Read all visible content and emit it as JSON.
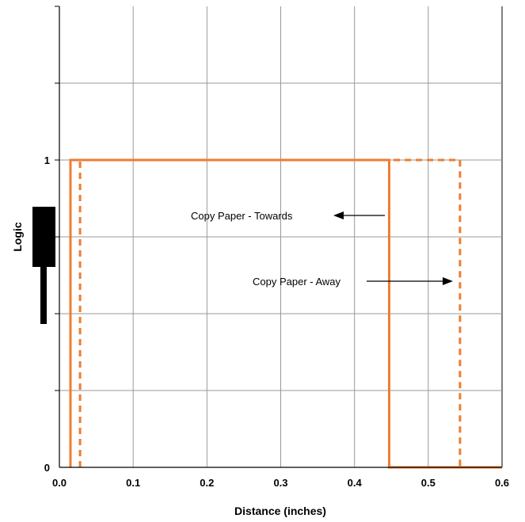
{
  "chart_data": {
    "type": "line",
    "xlabel": "Distance (inches)",
    "ylabel": "Logic",
    "xlim": [
      0,
      0.6
    ],
    "ylim": [
      0,
      1.5
    ],
    "x_ticks": [
      "0.0",
      "0.1",
      "0.2",
      "0.3",
      "0.4",
      "0.5",
      "0.6"
    ],
    "y_ticks": [
      {
        "value": 0,
        "label": "0"
      },
      {
        "value": 1,
        "label": "1"
      }
    ],
    "grid": true,
    "series": [
      {
        "name": "Copy Paper - Towards",
        "style": "solid",
        "color": "#ED7D31",
        "points": [
          [
            0.015,
            0
          ],
          [
            0.015,
            1
          ],
          [
            0.447,
            1
          ],
          [
            0.447,
            0
          ],
          [
            0.6,
            0
          ]
        ]
      },
      {
        "name": "Copy Paper - Away",
        "style": "dashed",
        "color": "#ED7D31",
        "points": [
          [
            0.028,
            0
          ],
          [
            0.028,
            1
          ],
          [
            0.543,
            1
          ],
          [
            0.543,
            0
          ]
        ]
      }
    ],
    "annotations": [
      {
        "text": "Copy Paper - Towards",
        "arrow": "left"
      },
      {
        "text": "Copy Paper - Away",
        "arrow": "right"
      }
    ]
  },
  "colors": {
    "line": "#ED7D31",
    "grid": "#999999",
    "axis": "#000000",
    "marker": "#000000"
  }
}
